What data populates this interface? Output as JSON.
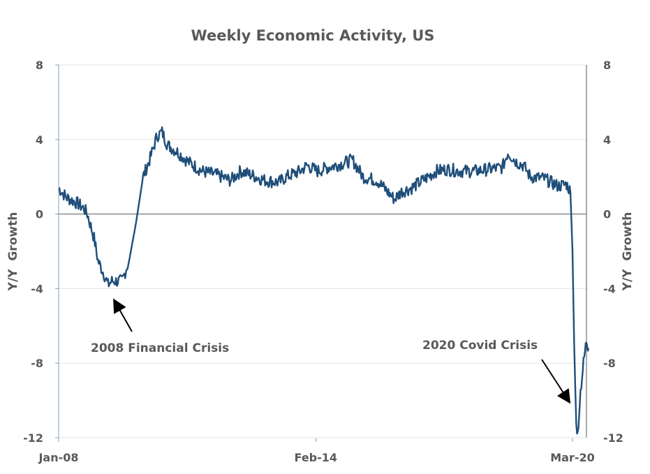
{
  "chart_data": {
    "type": "line",
    "title": "Weekly Economic Activity, US",
    "ylabel_left": "Y/Y  Growth",
    "ylabel_right": "Y/Y  Growth",
    "ylim": [
      -12,
      8
    ],
    "yticks": [
      8,
      4,
      0,
      -4,
      -8,
      -12
    ],
    "ytick_labels": [
      "8",
      "4",
      "0",
      "-4",
      "-8",
      "-12"
    ],
    "xticks": [
      {
        "label": "Jan-08",
        "x": 2008.0
      },
      {
        "label": "Feb-14",
        "x": 2014.09
      },
      {
        "label": "Mar-20",
        "x": 2020.17
      }
    ],
    "xlim": [
      2008.0,
      2020.6
    ],
    "grid": true,
    "series": [
      {
        "name": "Weekly Economic Activity",
        "color": "#1f4e79",
        "points": [
          [
            2008.0,
            1.4
          ],
          [
            2008.18,
            0.9
          ],
          [
            2008.43,
            0.6
          ],
          [
            2008.6,
            0.3
          ],
          [
            2008.68,
            0.0
          ],
          [
            2008.84,
            -1.3
          ],
          [
            2008.93,
            -2.5
          ],
          [
            2009.09,
            -3.3
          ],
          [
            2009.17,
            -3.8
          ],
          [
            2009.26,
            -3.6
          ],
          [
            2009.5,
            -3.6
          ],
          [
            2009.67,
            -2.5
          ],
          [
            2009.83,
            -0.5
          ],
          [
            2010.0,
            2.0
          ],
          [
            2010.17,
            3.0
          ],
          [
            2010.33,
            4.2
          ],
          [
            2010.45,
            4.4
          ],
          [
            2010.58,
            3.7
          ],
          [
            2010.83,
            3.3
          ],
          [
            2011.07,
            2.8
          ],
          [
            2011.4,
            2.3
          ],
          [
            2011.74,
            2.1
          ],
          [
            2012.07,
            1.8
          ],
          [
            2012.31,
            2.3
          ],
          [
            2012.56,
            2.1
          ],
          [
            2012.89,
            1.8
          ],
          [
            2013.22,
            1.7
          ],
          [
            2013.39,
            2.0
          ],
          [
            2013.72,
            2.3
          ],
          [
            2013.88,
            2.6
          ],
          [
            2014.13,
            2.3
          ],
          [
            2014.38,
            2.5
          ],
          [
            2014.71,
            2.7
          ],
          [
            2014.96,
            2.9
          ],
          [
            2015.21,
            2.0
          ],
          [
            2015.54,
            1.8
          ],
          [
            2015.79,
            1.2
          ],
          [
            2015.95,
            0.8
          ],
          [
            2016.12,
            1.2
          ],
          [
            2016.36,
            1.4
          ],
          [
            2016.69,
            1.9
          ],
          [
            2016.94,
            2.3
          ],
          [
            2017.19,
            2.4
          ],
          [
            2017.52,
            2.3
          ],
          [
            2017.85,
            2.3
          ],
          [
            2018.18,
            2.4
          ],
          [
            2018.51,
            2.5
          ],
          [
            2018.64,
            3.3
          ],
          [
            2018.84,
            2.8
          ],
          [
            2019.01,
            2.6
          ],
          [
            2019.17,
            2.0
          ],
          [
            2019.5,
            1.9
          ],
          [
            2019.83,
            1.5
          ],
          [
            2020.03,
            1.6
          ],
          [
            2020.12,
            1.2
          ],
          [
            2020.17,
            -2.0
          ],
          [
            2020.21,
            -7.0
          ],
          [
            2020.26,
            -11.4
          ],
          [
            2020.31,
            -11.5
          ],
          [
            2020.36,
            -9.5
          ],
          [
            2020.43,
            -8.0
          ],
          [
            2020.5,
            -6.8
          ],
          [
            2020.55,
            -7.2
          ]
        ]
      }
    ],
    "annotations": [
      {
        "text": "2008 Financial Crisis",
        "target": [
          2009.2,
          -4.3
        ]
      },
      {
        "text": "2020 Covid Crisis",
        "target": [
          2020.13,
          -10.1
        ]
      }
    ]
  }
}
